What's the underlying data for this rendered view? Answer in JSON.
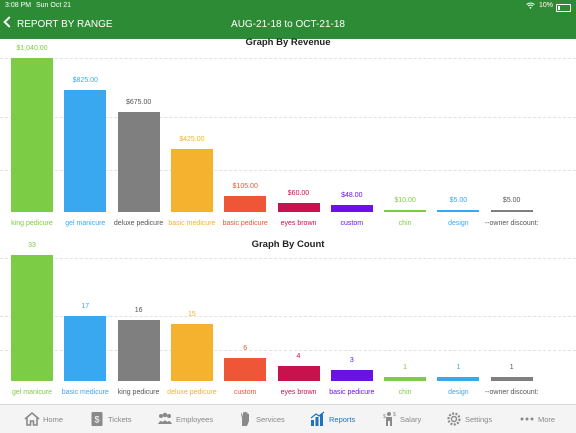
{
  "status_bar": {
    "time": "3:08 PM",
    "date": "Sun Oct 21",
    "battery": "10%"
  },
  "header": {
    "back_label": "REPORT BY RANGE",
    "title": "AUG-21-18 to OCT-21-18"
  },
  "colors": {
    "brand": "#2e8b35",
    "active_tab": "#1e73be"
  },
  "chart_data": [
    {
      "type": "bar",
      "title": "Graph By Revenue",
      "categories": [
        "king pedicure",
        "gel manicure",
        "deluxe pedicure",
        "basic medicure",
        "basic pedicure",
        "eyes brown",
        "custom",
        "chin",
        "design",
        "--owner discount:"
      ],
      "values": [
        1040,
        825,
        675,
        425,
        105,
        60,
        48,
        10,
        5,
        5
      ],
      "value_labels": [
        "$1,040.00",
        "$825.00",
        "$675.00",
        "$425.00",
        "$105.00",
        "$60.00",
        "$48.00",
        "$10.00",
        "$5.00",
        "$5.00"
      ],
      "colors": [
        "#7dcc45",
        "#3aa7f1",
        "#7f7f7f",
        "#f5b22f",
        "#ef5537",
        "#c7124e",
        "#6a11e6",
        "#7dcc45",
        "#3aa7f1",
        "#7f7f7f"
      ],
      "label_colors": [
        "#7dcc45",
        "#3aa7f1",
        "#555555",
        "#f5b22f",
        "#ef5537",
        "#c7124e",
        "#6a11e6",
        "#7dcc45",
        "#3aa7f1",
        "#555555"
      ],
      "ylim": [
        0,
        1040
      ]
    },
    {
      "type": "bar",
      "title": "Graph By Count",
      "categories": [
        "gel manicure",
        "basic medicure",
        "king pedicure",
        "deluxe pedicure",
        "custom",
        "eyes brown",
        "basic pedicure",
        "chin",
        "design",
        "--owner discount:"
      ],
      "values": [
        33,
        17,
        16,
        15,
        6,
        4,
        3,
        1,
        1,
        1
      ],
      "value_labels": [
        "33",
        "17",
        "16",
        "15",
        "6",
        "4",
        "3",
        "1",
        "1",
        "1"
      ],
      "colors": [
        "#7dcc45",
        "#3aa7f1",
        "#7f7f7f",
        "#f5b22f",
        "#ef5537",
        "#c7124e",
        "#6a11e6",
        "#7dcc45",
        "#3aa7f1",
        "#7f7f7f"
      ],
      "label_colors": [
        "#7dcc45",
        "#3aa7f1",
        "#555555",
        "#f5b22f",
        "#ef5537",
        "#c7124e",
        "#6a11e6",
        "#7dcc45",
        "#3aa7f1",
        "#555555"
      ],
      "ylim": [
        0,
        33
      ]
    }
  ],
  "tabs": [
    {
      "label": "Home",
      "icon": "home-icon",
      "active": false
    },
    {
      "label": "Tickets",
      "icon": "tickets-icon",
      "active": false
    },
    {
      "label": "Employees",
      "icon": "employees-icon",
      "active": false
    },
    {
      "label": "Services",
      "icon": "services-icon",
      "active": false
    },
    {
      "label": "Reports",
      "icon": "reports-icon",
      "active": true
    },
    {
      "label": "Salary",
      "icon": "salary-icon",
      "active": false
    },
    {
      "label": "Settings",
      "icon": "settings-icon",
      "active": false
    },
    {
      "label": "More",
      "icon": "more-icon",
      "active": false
    }
  ]
}
